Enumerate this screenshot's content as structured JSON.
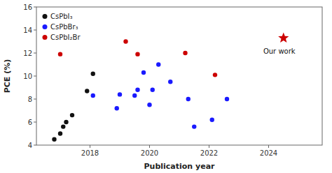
{
  "chart_data": {
    "type": "scatter",
    "xlabel": "Publication year",
    "ylabel": "PCE (%)",
    "xlim": [
      2016.2,
      2025.8
    ],
    "ylim": [
      4,
      16
    ],
    "xticks": [
      2018,
      2020,
      2022,
      2024
    ],
    "yticks": [
      4,
      6,
      8,
      10,
      12,
      14,
      16
    ],
    "grid": false,
    "legend": "upper left",
    "series": [
      {
        "name": "CsPbI₃",
        "color": "#111111",
        "marker": "circle",
        "x": [
          2016.8,
          2017.0,
          2017.1,
          2017.2,
          2017.4,
          2017.9,
          2018.1
        ],
        "values": [
          4.5,
          5.0,
          5.6,
          6.0,
          6.6,
          8.7,
          10.2
        ]
      },
      {
        "name": "CsPbBr₃",
        "color": "#1a1aff",
        "marker": "circle",
        "x": [
          2018.1,
          2018.9,
          2019.0,
          2019.5,
          2019.6,
          2019.8,
          2020.0,
          2020.1,
          2020.3,
          2020.7,
          2021.3,
          2021.5,
          2022.1,
          2022.6
        ],
        "values": [
          8.3,
          7.2,
          8.4,
          8.3,
          8.8,
          10.3,
          7.5,
          8.8,
          11.0,
          9.5,
          8.0,
          5.6,
          6.2,
          8.0
        ]
      },
      {
        "name": "CsPbI₂Br",
        "color": "#cc0000",
        "marker": "circle",
        "x": [
          2017.0,
          2019.2,
          2019.6,
          2021.2,
          2022.2
        ],
        "values": [
          11.9,
          13.0,
          11.9,
          12.0,
          10.1
        ]
      }
    ],
    "annotations": [
      {
        "text": "Our work",
        "x": 2024.5,
        "y": 13.3,
        "color": "#cc0000",
        "marker": "star"
      }
    ]
  }
}
